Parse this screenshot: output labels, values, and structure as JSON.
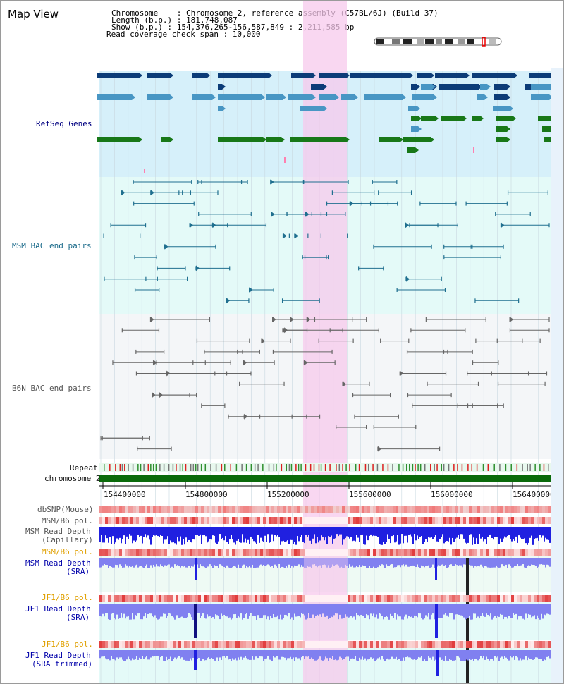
{
  "title": "Map View",
  "header": {
    "chromosome_label": "Chromosome    : Chromosome 2, reference assembly (C57BL/6J) (Build 37)",
    "length_label": "Length (b.p.) : 181,748,087",
    "show_label": "Show (b.p.) : 154,376,265-156,587,849 : 2,211,585 bp",
    "coverage_label": "Read coverage check span : 10,000"
  },
  "tracks": {
    "refseq": "RefSeq Genes",
    "msm_bac": "MSM BAC end pairs",
    "b6n_bac": "B6N BAC end pairs",
    "repeat": "Repeat",
    "chromosome": "chromosome 2",
    "dbsnp": "dbSNP(Mouse)",
    "msm_b6_pol_1": "MSM/B6 pol.",
    "msm_read_depth_cap_1": "MSM Read Depth",
    "msm_read_depth_cap_2": "(Capillary)",
    "msm_b6_pol_2": "MSM/B6 pol.",
    "msm_read_depth_sra_1": "MSM Read Depth",
    "msm_read_depth_sra_2": "(SRA)",
    "jf1_b6_pol_1": "JF1/B6 pol.",
    "jf1_read_depth_sra_1": "JF1 Read Depth",
    "jf1_read_depth_sra_2": "(SRA)",
    "jf1_b6_pol_2": "JF1/B6 pol.",
    "jf1_read_depth_trim_1": "JF1 Read Depth",
    "jf1_read_depth_trim_2": "(SRA trimmed)"
  },
  "axis": {
    "ticks": [
      "154400000",
      "154800000",
      "155200000",
      "155600000",
      "156000000",
      "156400000"
    ]
  },
  "colors": {
    "highlight": "#f7c9ec",
    "refseq_bg": "#d6f0fa",
    "bac_bg": "#e4faf8",
    "b6n_bg": "#f4f6f8",
    "gene_dark": "#0c3c78",
    "gene_mid": "#4896c4",
    "gene_green": "#187818",
    "chromosome": "#0a6a0a",
    "depth_blue": "#2020e0",
    "depth_light": "#8080f0",
    "pol_red": "#e02020"
  }
}
